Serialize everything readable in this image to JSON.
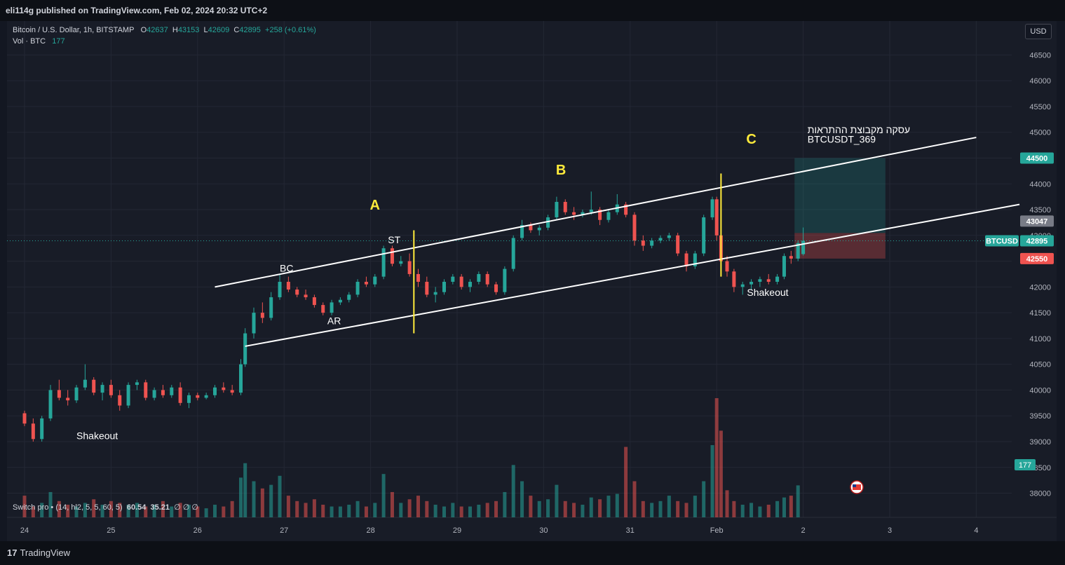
{
  "header": {
    "published": "eli114g published on TradingView.com, Feb 02, 2024 20:32 UTC+2"
  },
  "legend": {
    "symbol": "Bitcoin / U.S. Dollar, 1h, BITSTAMP",
    "o_label": "O",
    "o_value": "42637",
    "h_label": "H",
    "h_value": "43153",
    "l_label": "L",
    "l_value": "42609",
    "c_label": "C",
    "c_value": "42895",
    "change": "+258 (+0.61%)",
    "vol_label": "Vol · BTC",
    "vol_value": "177"
  },
  "currency_button": "USD",
  "indicator": {
    "name": "Switch pro • (14, hl2, 5, 5, 60, 5)",
    "v1": "60.54",
    "v2": "35.21",
    "rest": "∅ ∅ ∅"
  },
  "footer": {
    "brand": "TradingView",
    "mark": "17"
  },
  "colors": {
    "background": "#131722",
    "up": "#26a69a",
    "down": "#ef5350",
    "channel": "#ffffff",
    "vertical_marker": "#ffeb3b",
    "label_yellow": "#ffeb3b",
    "target_fill": "#26a69a",
    "stop_fill": "#ef5350"
  },
  "chart_data": {
    "type": "candlestick",
    "symbol": "BTCUSD",
    "interval": "1h",
    "x_ticks": [
      "24",
      "25",
      "26",
      "27",
      "28",
      "29",
      "30",
      "31",
      "Feb",
      "2",
      "3",
      "4"
    ],
    "y_ticks": [
      38000,
      38500,
      39000,
      39500,
      40000,
      40500,
      41000,
      41500,
      42000,
      42500,
      43000,
      43500,
      44000,
      44500,
      45000,
      45500,
      46000,
      46500
    ],
    "ylim": [
      37980,
      46750
    ],
    "xlim_days": [
      23.8,
      35.0
    ],
    "last_price": 42895,
    "price_labels": [
      {
        "text": "43047",
        "value": 43047,
        "kind": "neutral"
      },
      {
        "text": "BTCUSD",
        "value": 42895,
        "kind": "symbol"
      },
      {
        "text": "42895",
        "value": 42895,
        "kind": "current"
      },
      {
        "text": "44500",
        "value": 44500,
        "kind": "target"
      },
      {
        "text": "42550",
        "value": 42550,
        "kind": "stop"
      }
    ],
    "volume_label": "177",
    "candles": [
      [
        24.0,
        39550,
        39600,
        39300,
        39350
      ],
      [
        24.1,
        39350,
        39450,
        39000,
        39050
      ],
      [
        24.2,
        39050,
        39500,
        39000,
        39450
      ],
      [
        24.3,
        39450,
        40100,
        39400,
        40000
      ],
      [
        24.4,
        40000,
        40200,
        39800,
        39850
      ],
      [
        24.5,
        39850,
        40000,
        39700,
        39800
      ],
      [
        24.6,
        39800,
        40100,
        39750,
        40050
      ],
      [
        24.7,
        40050,
        40500,
        40000,
        40200
      ],
      [
        24.8,
        40200,
        40250,
        39900,
        39950
      ],
      [
        24.9,
        39950,
        40150,
        39800,
        40100
      ],
      [
        25.0,
        40100,
        40200,
        39850,
        39900
      ],
      [
        25.1,
        39900,
        40000,
        39600,
        39700
      ],
      [
        25.2,
        39700,
        40150,
        39650,
        40100
      ],
      [
        25.3,
        40100,
        40200,
        40000,
        40150
      ],
      [
        25.4,
        40150,
        40200,
        39800,
        39850
      ],
      [
        25.5,
        39850,
        40050,
        39800,
        40000
      ],
      [
        25.6,
        40000,
        40100,
        39850,
        39900
      ],
      [
        25.7,
        39900,
        40100,
        39850,
        40050
      ],
      [
        25.8,
        40050,
        40150,
        39700,
        39750
      ],
      [
        25.9,
        39750,
        39950,
        39650,
        39900
      ],
      [
        26.0,
        39900,
        39950,
        39800,
        39850
      ],
      [
        26.1,
        39850,
        39950,
        39820,
        39900
      ],
      [
        26.2,
        39900,
        40100,
        39850,
        40050
      ],
      [
        26.3,
        40050,
        40150,
        39950,
        40000
      ],
      [
        26.4,
        40000,
        40100,
        39900,
        39950
      ],
      [
        26.5,
        39950,
        40600,
        39900,
        40500
      ],
      [
        26.55,
        40500,
        41200,
        40450,
        41100
      ],
      [
        26.65,
        41100,
        41600,
        41000,
        41500
      ],
      [
        26.75,
        41500,
        41700,
        41300,
        41400
      ],
      [
        26.85,
        41400,
        41900,
        41350,
        41800
      ],
      [
        26.95,
        41800,
        42250,
        41750,
        42100
      ],
      [
        27.05,
        42100,
        42200,
        41900,
        41950
      ],
      [
        27.15,
        41950,
        42000,
        41800,
        41850
      ],
      [
        27.25,
        41850,
        41950,
        41750,
        41800
      ],
      [
        27.35,
        41800,
        41850,
        41600,
        41650
      ],
      [
        27.45,
        41650,
        41700,
        41450,
        41500
      ],
      [
        27.55,
        41500,
        41750,
        41450,
        41700
      ],
      [
        27.65,
        41700,
        41800,
        41650,
        41750
      ],
      [
        27.75,
        41750,
        41900,
        41700,
        41850
      ],
      [
        27.85,
        41850,
        42150,
        41800,
        42100
      ],
      [
        27.95,
        42100,
        42200,
        42000,
        42050
      ],
      [
        28.05,
        42050,
        42250,
        42000,
        42200
      ],
      [
        28.15,
        42200,
        42800,
        42150,
        42750
      ],
      [
        28.25,
        42750,
        42800,
        42400,
        42450
      ],
      [
        28.35,
        42450,
        42600,
        42400,
        42500
      ],
      [
        28.45,
        42500,
        42650,
        42200,
        42250
      ],
      [
        28.55,
        42250,
        42350,
        42000,
        42100
      ],
      [
        28.65,
        42100,
        42200,
        41800,
        41850
      ],
      [
        28.75,
        41850,
        42000,
        41700,
        41900
      ],
      [
        28.85,
        41900,
        42150,
        41850,
        42100
      ],
      [
        28.95,
        42100,
        42250,
        42050,
        42200
      ],
      [
        29.05,
        42200,
        42250,
        41950,
        42000
      ],
      [
        29.15,
        42000,
        42150,
        41900,
        42100
      ],
      [
        29.25,
        42100,
        42300,
        42050,
        42250
      ],
      [
        29.35,
        42250,
        42300,
        42000,
        42050
      ],
      [
        29.45,
        42050,
        42100,
        41850,
        41900
      ],
      [
        29.55,
        41900,
        42400,
        41850,
        42350
      ],
      [
        29.65,
        42350,
        43000,
        42300,
        42950
      ],
      [
        29.75,
        42950,
        43300,
        42900,
        43200
      ],
      [
        29.85,
        43200,
        43250,
        43050,
        43100
      ],
      [
        29.95,
        43100,
        43200,
        43000,
        43150
      ],
      [
        30.05,
        43150,
        43400,
        43100,
        43350
      ],
      [
        30.15,
        43350,
        43750,
        43300,
        43650
      ],
      [
        30.25,
        43650,
        43700,
        43400,
        43450
      ],
      [
        30.35,
        43450,
        43550,
        43300,
        43400
      ],
      [
        30.45,
        43400,
        43500,
        43350,
        43450
      ],
      [
        30.55,
        43450,
        43850,
        43400,
        43500
      ],
      [
        30.65,
        43500,
        43550,
        43200,
        43300
      ],
      [
        30.75,
        43300,
        43500,
        43250,
        43450
      ],
      [
        30.85,
        43450,
        43800,
        43400,
        43600
      ],
      [
        30.95,
        43600,
        43650,
        43350,
        43400
      ],
      [
        31.05,
        43400,
        43450,
        42800,
        42900
      ],
      [
        31.15,
        42900,
        43000,
        42700,
        42800
      ],
      [
        31.25,
        42800,
        42950,
        42750,
        42900
      ],
      [
        31.35,
        42900,
        43000,
        42850,
        42950
      ],
      [
        31.45,
        42950,
        43050,
        42900,
        43000
      ],
      [
        31.55,
        43000,
        43050,
        42600,
        42650
      ],
      [
        31.65,
        42650,
        42700,
        42300,
        42400
      ],
      [
        31.75,
        42400,
        42700,
        42350,
        42650
      ],
      [
        31.85,
        42650,
        43400,
        42600,
        43350
      ],
      [
        31.95,
        43350,
        43750,
        43300,
        43700
      ],
      [
        32.0,
        43700,
        43750,
        42900,
        43000
      ],
      [
        32.05,
        43000,
        43050,
        42400,
        42500
      ],
      [
        32.12,
        42500,
        42600,
        42200,
        42300
      ],
      [
        32.2,
        42300,
        42350,
        41900,
        42000
      ],
      [
        32.3,
        42000,
        42100,
        41850,
        42050
      ],
      [
        32.4,
        42050,
        42150,
        41950,
        42100
      ],
      [
        32.5,
        42100,
        42200,
        42000,
        42150
      ],
      [
        32.6,
        42150,
        42250,
        42050,
        42100
      ],
      [
        32.7,
        42100,
        42250,
        42050,
        42200
      ],
      [
        32.78,
        42200,
        42650,
        42150,
        42600
      ],
      [
        32.86,
        42600,
        42700,
        42450,
        42550
      ],
      [
        32.94,
        42550,
        42900,
        42500,
        42850
      ],
      [
        33.0,
        42637,
        43153,
        42609,
        42895
      ]
    ],
    "volume": {
      "max": 660,
      "values": [
        120,
        60,
        80,
        140,
        90,
        70,
        60,
        80,
        100,
        70,
        90,
        80,
        70,
        80,
        60,
        70,
        90,
        60,
        80,
        70,
        60,
        50,
        70,
        60,
        90,
        220,
        300,
        200,
        160,
        180,
        230,
        120,
        90,
        80,
        100,
        70,
        60,
        60,
        70,
        90,
        60,
        80,
        240,
        140,
        80,
        100,
        120,
        90,
        70,
        60,
        80,
        60,
        60,
        70,
        80,
        90,
        140,
        290,
        200,
        120,
        90,
        100,
        180,
        90,
        80,
        70,
        110,
        100,
        120,
        130,
        390,
        200,
        90,
        80,
        90,
        120,
        90,
        80,
        120,
        200,
        400,
        660,
        480,
        150,
        90,
        70,
        80,
        60,
        70,
        90,
        110,
        120,
        177
      ]
    },
    "channels": [
      {
        "name": "upper",
        "start": [
          26.2,
          42000
        ],
        "end": [
          35.0,
          44900
        ]
      },
      {
        "name": "lower",
        "start": [
          26.55,
          40850
        ],
        "end": [
          35.5,
          43600
        ]
      }
    ],
    "vertical_markers": [
      {
        "day": 28.5,
        "from": 41100,
        "to": 43100
      },
      {
        "day": 32.05,
        "from": 42200,
        "to": 44200
      }
    ],
    "position": {
      "start": 32.9,
      "end": 33.95,
      "entry": 43047,
      "target": 44500,
      "stop": 42550
    },
    "annotations": [
      {
        "text": "A",
        "day": 28.05,
        "price": 43500,
        "color": "yellow"
      },
      {
        "text": "B",
        "day": 30.2,
        "price": 44180,
        "color": "yellow"
      },
      {
        "text": "C",
        "day": 32.4,
        "price": 44780,
        "color": "yellow"
      },
      {
        "text": "BC",
        "day": 26.95,
        "price": 42300,
        "color": "white"
      },
      {
        "text": "AR",
        "day": 27.5,
        "price": 41280,
        "color": "white"
      },
      {
        "text": "ST",
        "day": 28.2,
        "price": 42850,
        "color": "white"
      },
      {
        "text": "Shakeout",
        "day": 24.6,
        "price": 39050,
        "color": "white"
      },
      {
        "text": "Shakeout",
        "day": 32.35,
        "price": 41830,
        "color": "white"
      },
      {
        "text": "עסקה מקבוצת ההתראות",
        "day": 33.05,
        "price": 44980,
        "color": "white"
      },
      {
        "text": "BTCUSDT_369",
        "day": 33.05,
        "price": 44800,
        "color": "white"
      }
    ]
  }
}
